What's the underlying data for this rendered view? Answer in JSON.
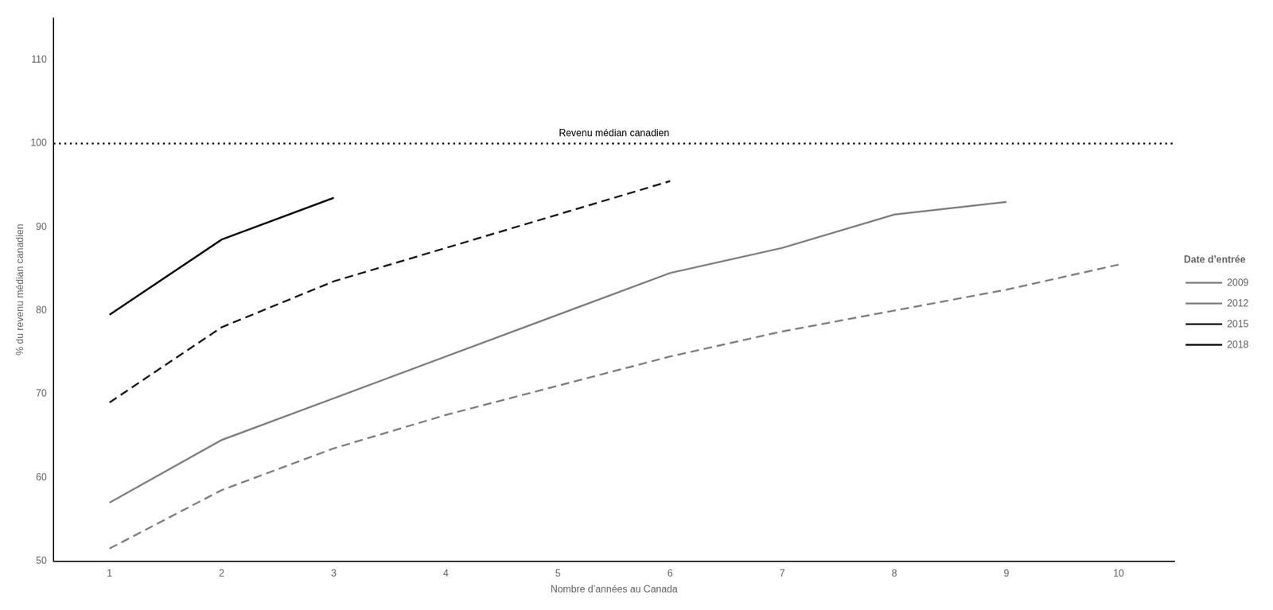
{
  "chart_data": {
    "type": "line",
    "xlabel": "Nombre d’années au Canada",
    "ylabel": "% du revenu médian canadien",
    "x": [
      1,
      2,
      3,
      4,
      5,
      6,
      7,
      8,
      9,
      10
    ],
    "series": [
      {
        "name": "2009",
        "color": "#808080",
        "line_style": "dashed",
        "values": [
          51.5,
          58.5,
          63.5,
          67.5,
          71.0,
          74.5,
          77.5,
          80.0,
          82.5,
          85.5
        ]
      },
      {
        "name": "2012",
        "color": "#808080",
        "line_style": "solid",
        "values": [
          57.0,
          64.5,
          69.5,
          74.5,
          79.5,
          84.5,
          87.5,
          91.5,
          93.0,
          null
        ]
      },
      {
        "name": "2015",
        "color": "#1a1a1a",
        "line_style": "dashed",
        "values": [
          69.0,
          78.0,
          83.5,
          87.5,
          91.5,
          95.5,
          null,
          null,
          null,
          null
        ]
      },
      {
        "name": "2018",
        "color": "#000000",
        "line_style": "solid",
        "values": [
          79.5,
          88.5,
          93.5,
          null,
          null,
          null,
          null,
          null,
          null,
          null
        ]
      }
    ],
    "annotations": [
      {
        "type": "hline",
        "y": 100,
        "text": "Revenu médian canadien",
        "line_style": "dotted",
        "color": "#000000"
      }
    ],
    "legend": "right",
    "legend_title": "Date d’entrée",
    "xlim": [
      0.5,
      10.5
    ],
    "xticks": [
      1,
      2,
      3,
      4,
      5,
      6,
      7,
      8,
      9,
      10
    ],
    "ylim": [
      50,
      115
    ],
    "yticks": [
      50,
      60,
      70,
      80,
      90,
      100,
      110
    ],
    "grid": false
  }
}
